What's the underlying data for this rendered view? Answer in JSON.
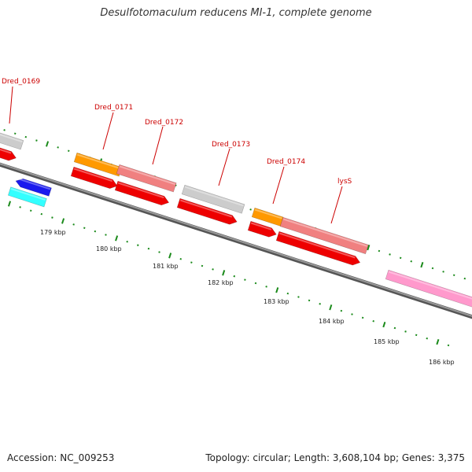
{
  "title": "Desulfotomaculum reducens MI-1, complete genome",
  "footer": {
    "accession": "Accession: NC_009253",
    "topology": "Topology: circular; Length: 3,608,104 bp; Genes: 3,375"
  },
  "colors": {
    "backbone": "#777777",
    "tick": "#1a8a1a",
    "label": "#cc0000",
    "cds_forward": "#f08080",
    "cds_reverse": "#ee0000",
    "trna": "#ff9900",
    "other": "#cccccc",
    "blue": "#1a1aee",
    "cyan": "#33ffff",
    "pink": "#ff99cc"
  },
  "scale_labels": [
    "179 kbp",
    "180 kbp",
    "181 kbp",
    "182 kbp",
    "183 kbp",
    "184 kbp",
    "185 kbp",
    "186 kbp"
  ],
  "gene_labels": [
    "Dred_0169",
    "Dred_0171",
    "Dred_0172",
    "Dred_0173",
    "Dred_0174",
    "lysS"
  ]
}
